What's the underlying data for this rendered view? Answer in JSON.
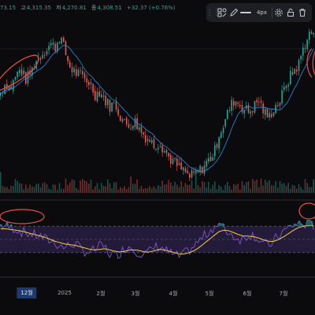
{
  "ohlc": {
    "open_label": "",
    "open_value": "73.15",
    "high_label": "고",
    "high_value": "4,315.35",
    "low_label": "저",
    "low_value": "4,270.81",
    "close_label": "종",
    "close_value": "4,308.51",
    "change": "+32.37 (+0.76%)"
  },
  "toolbar": {
    "grip_icon": "grip-dots-icon",
    "tool_icon": "drawing-tools-icon",
    "pencil_icon": "pencil-icon",
    "stroke_width": "4px",
    "settings_icon": "gear-icon",
    "lock_icon": "lock-icon",
    "delete_icon": "trash-icon"
  },
  "x_axis": {
    "labels": [
      "12월",
      "2025",
      "2월",
      "3월",
      "4월",
      "5월",
      "6월",
      "7월"
    ],
    "active_label": "12월"
  },
  "colors": {
    "up": "#26a69a",
    "down": "#ef5350",
    "ma": "#2196f3",
    "rsi": "#7e57c2",
    "rsi_signal": "#f0d040",
    "rsi_band": "#241a3a",
    "annotation": "#e84c4c",
    "background": "#0b0b0d"
  },
  "chart_data": {
    "type": "candlestick",
    "indicators": [
      "moving-average",
      "volume",
      "rsi"
    ],
    "close_series": [
      4105,
      4140,
      4120,
      4160,
      4185,
      4150,
      4170,
      4210,
      4230,
      4250,
      4270,
      4260,
      4300,
      4240,
      4190,
      4175,
      4165,
      4150,
      4140,
      4100,
      4110,
      4080,
      4060,
      4070,
      4030,
      4000,
      3995,
      4010,
      3980,
      3960,
      3945,
      3925,
      3940,
      3910,
      3885,
      3870,
      3850,
      3840,
      3820,
      3830,
      3840,
      3860,
      3880,
      3900,
      3970,
      4000,
      4050,
      4080,
      4070,
      4050,
      4040,
      4060,
      4080,
      4040,
      4020,
      4055,
      4070,
      4110,
      4150,
      4180,
      4200,
      4260,
      4300,
      4310
    ],
    "rsi_series": [
      72,
      70,
      68,
      66,
      62,
      60,
      58,
      56,
      55,
      50,
      48,
      45,
      40,
      38,
      42,
      44,
      36,
      32,
      30,
      35,
      40,
      38,
      28,
      26,
      30,
      36,
      40,
      34,
      30,
      28,
      32,
      38,
      40,
      34,
      30,
      26,
      24,
      28,
      34,
      40,
      48,
      55,
      62,
      70,
      72,
      66,
      60,
      55,
      50,
      52,
      58,
      56,
      50,
      44,
      40,
      48,
      56,
      62,
      68,
      72,
      74,
      73,
      72,
      71
    ],
    "rsi_signal_series": [
      66,
      66,
      65,
      64,
      63,
      61,
      59,
      57,
      55,
      53,
      50,
      47,
      45,
      43,
      42,
      41,
      39,
      37,
      35,
      34,
      35,
      36,
      34,
      32,
      31,
      32,
      34,
      34,
      33,
      31,
      31,
      33,
      35,
      34,
      32,
      30,
      28,
      28,
      30,
      33,
      38,
      44,
      50,
      56,
      62,
      64,
      63,
      60,
      57,
      55,
      55,
      54,
      52,
      49,
      47,
      47,
      50,
      54,
      59,
      64,
      68,
      70,
      71,
      71
    ],
    "rsi_upper": 70,
    "rsi_lower": 30
  }
}
